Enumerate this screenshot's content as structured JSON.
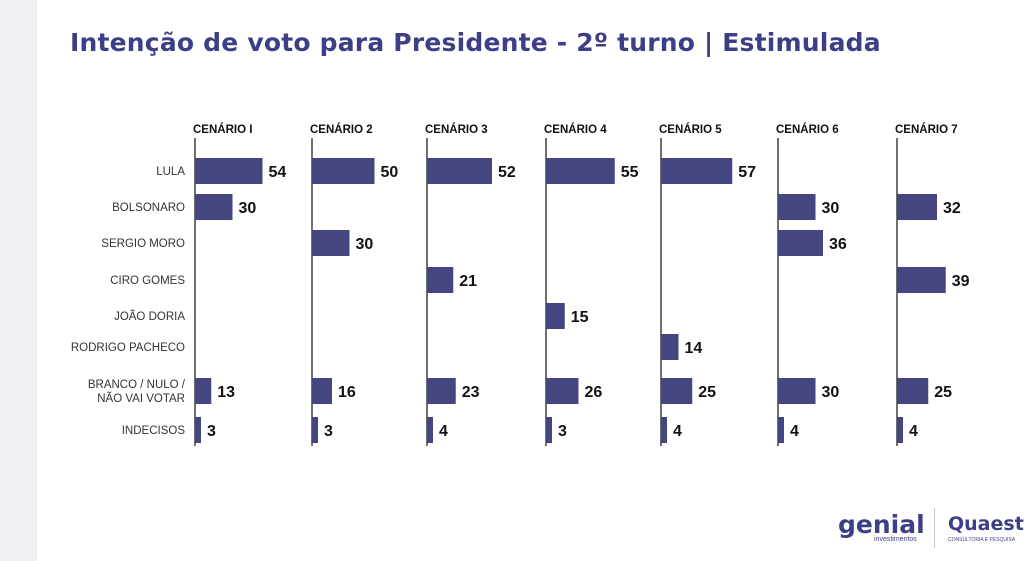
{
  "title": "Intenção de voto para Presidente - 2º turno | Estimulada",
  "colors": {
    "bar": "#45457f",
    "title": "#3d3f86",
    "axis": "#222222"
  },
  "logos": {
    "genial": "genial",
    "genial_sub": "investimentos",
    "quaest": "Quaest",
    "quaest_sub": "CONSULTORIA E PESQUISA"
  },
  "chart_data": {
    "type": "bar",
    "orientation": "horizontal",
    "title": "Intenção de voto para Presidente - 2º turno | Estimulada",
    "scenarios": [
      "CENÁRIO I",
      "CENÁRIO 2",
      "CENÁRIO 3",
      "CENÁRIO 4",
      "CENÁRIO 5",
      "CENÁRIO 6",
      "CENÁRIO 7"
    ],
    "categories": [
      {
        "label": "LULA",
        "lines": [
          "LULA"
        ]
      },
      {
        "label": "BOLSONARO",
        "lines": [
          "BOLSONARO"
        ]
      },
      {
        "label": "SERGIO MORO",
        "lines": [
          "SERGIO MORO"
        ]
      },
      {
        "label": "CIRO GOMES",
        "lines": [
          "CIRO GOMES"
        ]
      },
      {
        "label": "JOÃO DORIA",
        "lines": [
          "JOÃO DORIA"
        ]
      },
      {
        "label": "RODRIGO PACHECO",
        "lines": [
          "RODRIGO PACHECO"
        ]
      },
      {
        "label": "BRANCO / NULO / NÃO VAI VOTAR",
        "lines": [
          "BRANCO / NULO /",
          "NÃO VAI VOTAR"
        ]
      },
      {
        "label": "INDECISOS",
        "lines": [
          "INDECISOS"
        ]
      }
    ],
    "values": [
      [
        54,
        30,
        null,
        null,
        null,
        null,
        13,
        3
      ],
      [
        50,
        null,
        30,
        null,
        null,
        null,
        16,
        3
      ],
      [
        52,
        null,
        null,
        21,
        null,
        null,
        23,
        4
      ],
      [
        55,
        null,
        null,
        null,
        15,
        null,
        26,
        3
      ],
      [
        57,
        null,
        null,
        null,
        null,
        14,
        25,
        4
      ],
      [
        null,
        30,
        36,
        null,
        null,
        null,
        30,
        4
      ],
      [
        null,
        32,
        null,
        39,
        null,
        null,
        25,
        4
      ]
    ]
  }
}
